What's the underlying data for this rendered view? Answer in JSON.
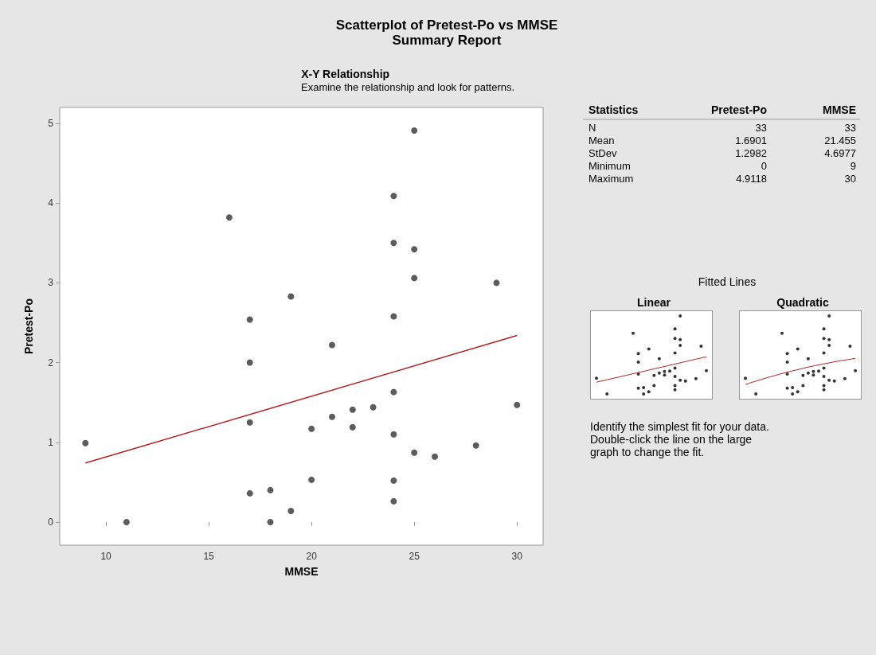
{
  "chart_data": [
    {
      "type": "scatter",
      "title": "Scatterplot of Pretest-Po vs MMSE",
      "subtitle": "Summary Report",
      "annotations": [
        "X-Y Relationship",
        "Examine the relationship and look for patterns."
      ],
      "xlabel": "MMSE",
      "ylabel": "Pretest-Po",
      "xlim": [
        7.75,
        31.27
      ],
      "ylim": [
        -0.29,
        5.2
      ],
      "xticks": [
        10,
        15,
        20,
        25,
        30
      ],
      "yticks": [
        0,
        1,
        2,
        3,
        4,
        5
      ],
      "marker": "circle",
      "series": [
        {
          "type": "scatter",
          "color": "#333333",
          "x": [
            9,
            11,
            16,
            17,
            17,
            17,
            17,
            18,
            18,
            19,
            19,
            20,
            20,
            21,
            21,
            22,
            22,
            23,
            24,
            24,
            24,
            24,
            24,
            24,
            24,
            25,
            25,
            25,
            25,
            26,
            28,
            29,
            30
          ],
          "values": [
            0.99,
            0,
            3.82,
            2.54,
            2.0,
            1.25,
            0.36,
            0.4,
            0,
            2.83,
            0.14,
            1.17,
            0.53,
            2.22,
            1.32,
            1.41,
            1.19,
            1.44,
            4.09,
            3.5,
            2.58,
            1.63,
            1.1,
            0.52,
            0.26,
            4.91,
            3.42,
            3.06,
            0.87,
            0.82,
            0.96,
            3.0,
            1.47
          ]
        },
        {
          "type": "line",
          "marker": "none",
          "color": "#b22222",
          "x": [
            9,
            30
          ],
          "values": [
            0.74,
            2.34
          ]
        }
      ]
    },
    {
      "type": "other",
      "title": "Statistics",
      "categories": [
        "N",
        "Mean",
        "StDev",
        "Minimum",
        "Maximum"
      ],
      "data_labels": true,
      "series": [
        {
          "name": "Pretest-Po",
          "values": [
            33,
            1.6901,
            1.2982,
            0,
            4.9118
          ]
        },
        {
          "name": "MMSE",
          "values": [
            33,
            21.455,
            4.6977,
            9,
            30
          ]
        }
      ]
    },
    {
      "type": "other",
      "title": "Linear",
      "annotations": [
        "Fitted Lines",
        "Identify the simplest fit for your data. Double-click the line on the large graph to change the fit."
      ]
    },
    {
      "type": "other",
      "title": "Quadratic"
    }
  ]
}
